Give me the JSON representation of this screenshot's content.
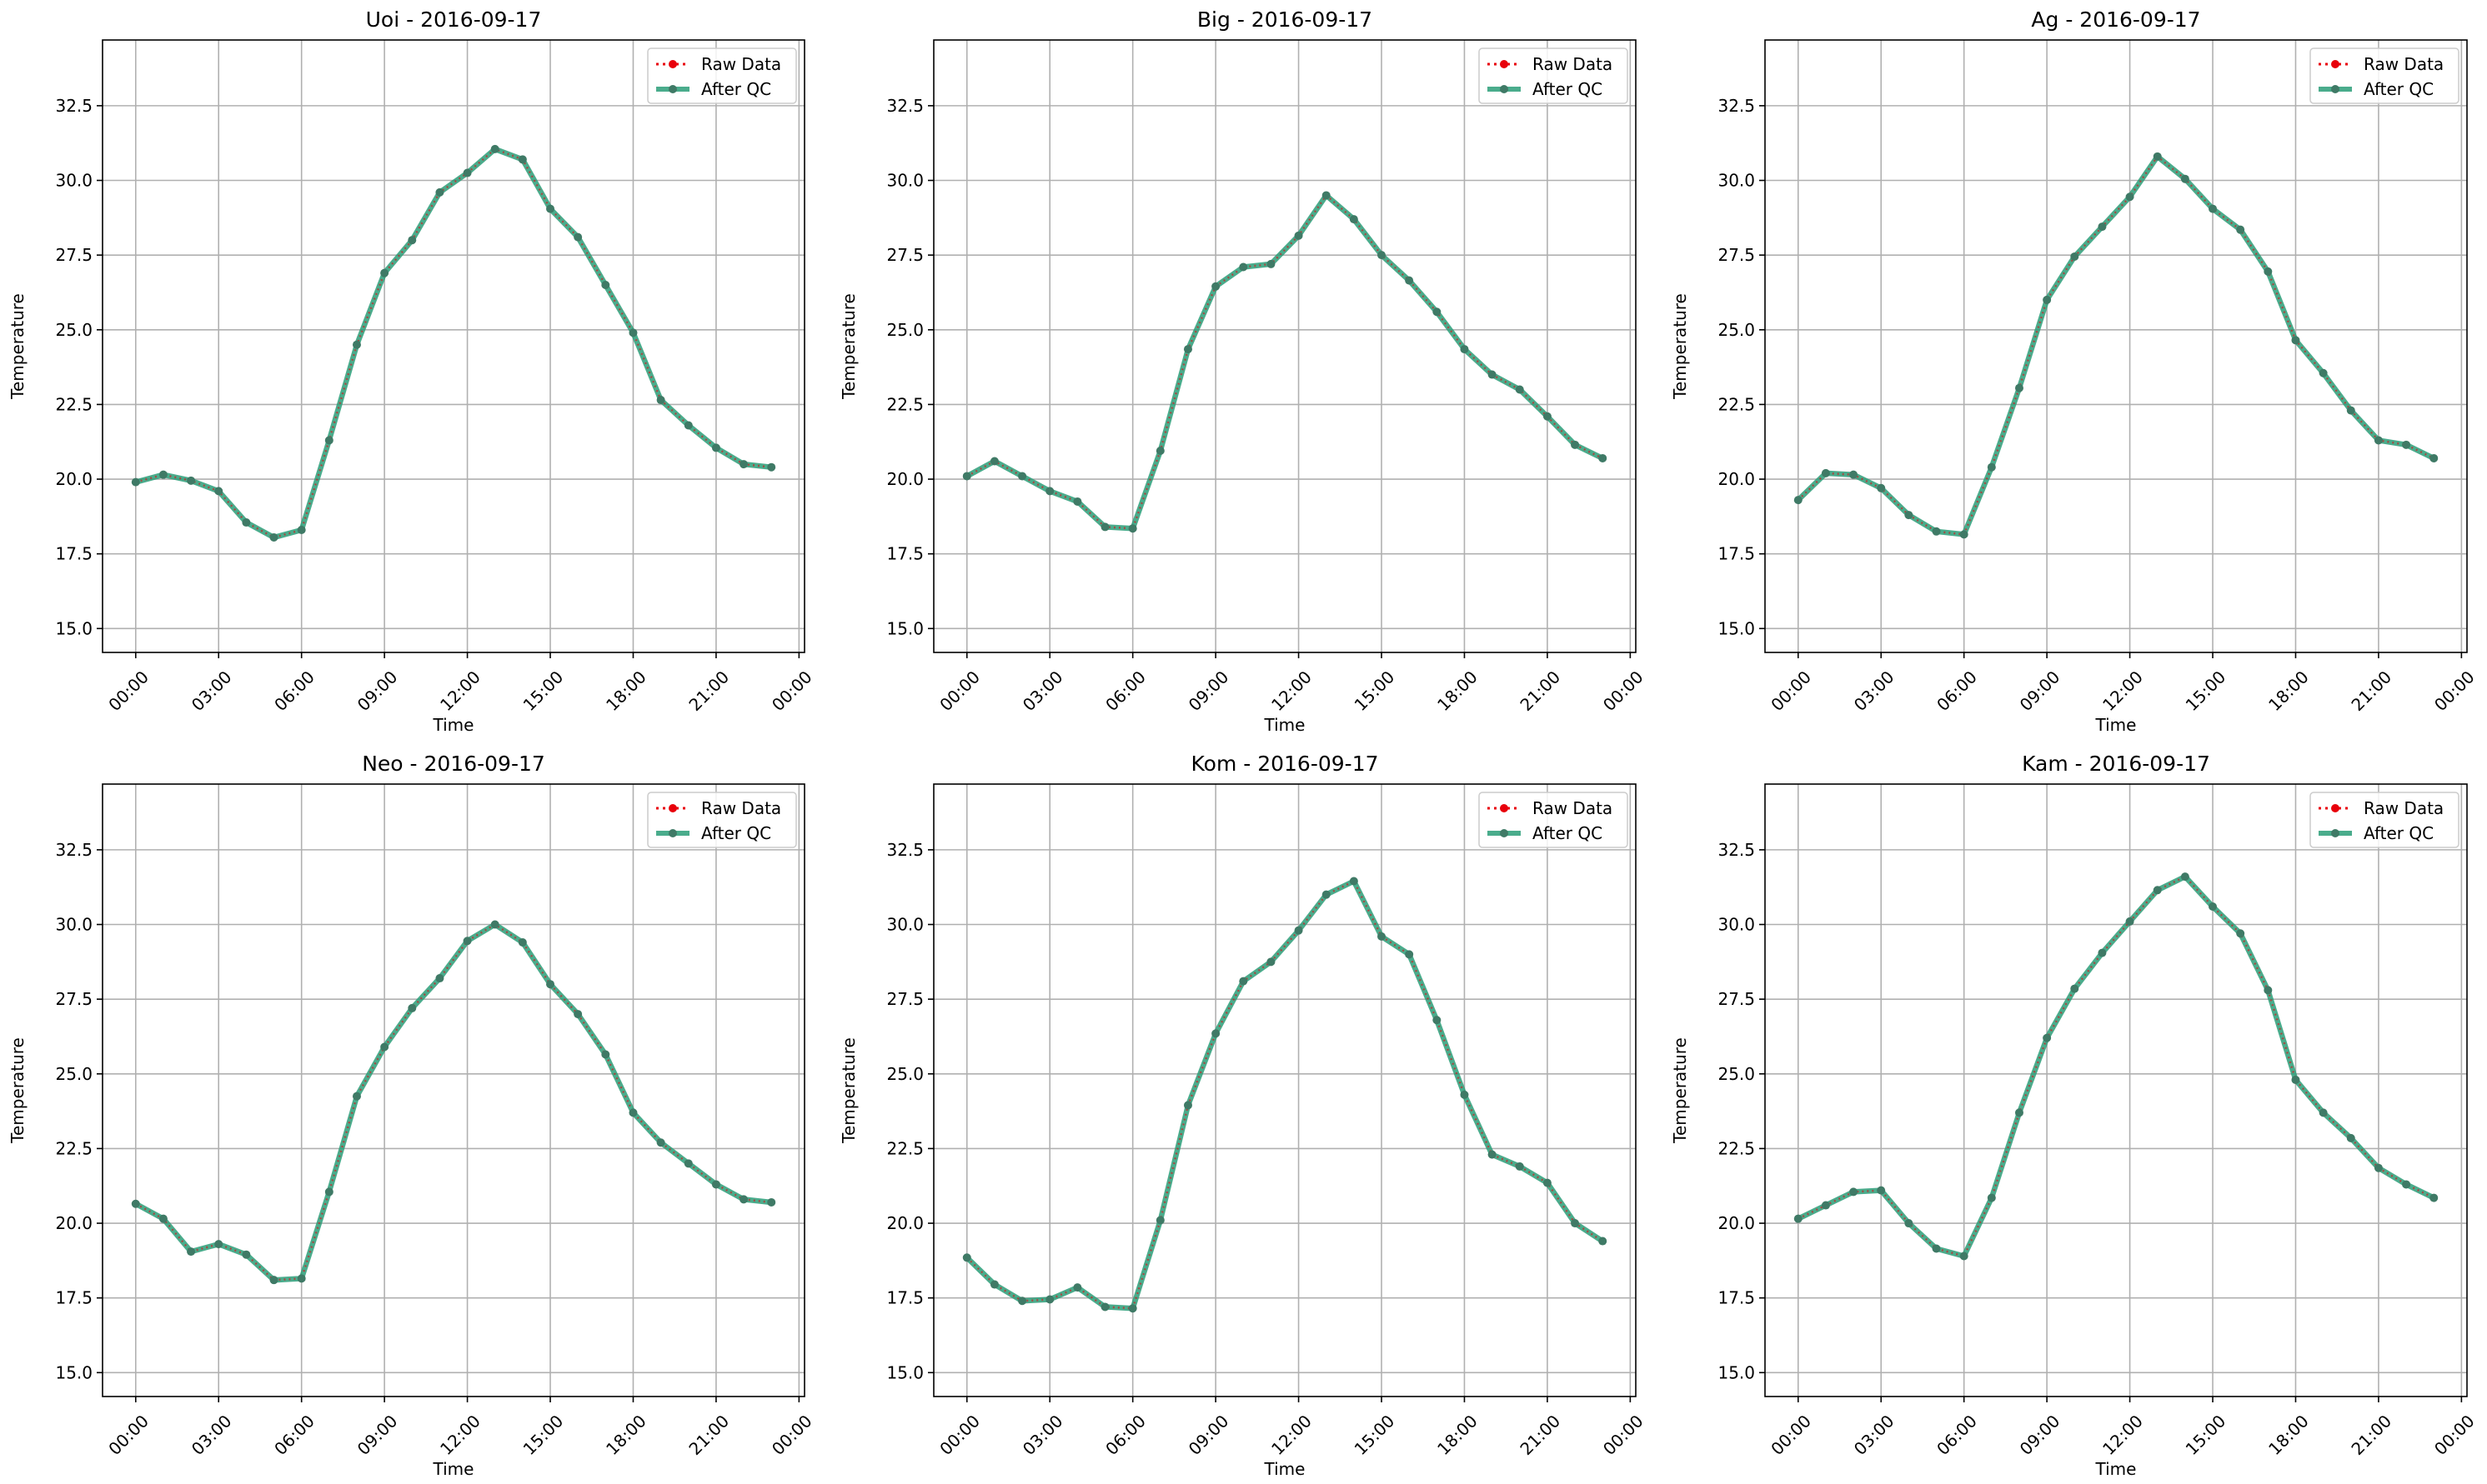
{
  "chart_data": [
    {
      "type": "line",
      "title": "Uoi - 2016-09-17",
      "xlabel": "Time",
      "ylabel": "Temperature",
      "xticks": [
        "00:00",
        "03:00",
        "06:00",
        "09:00",
        "12:00",
        "15:00",
        "18:00",
        "21:00",
        "00:00"
      ],
      "yticks": [
        "15.0",
        "17.5",
        "20.0",
        "22.5",
        "25.0",
        "27.5",
        "30.0",
        "32.5"
      ],
      "xlim": [
        -1.2,
        24.2
      ],
      "ylim": [
        14.2,
        34.7
      ],
      "grid": true,
      "legend": "top-right",
      "series": [
        {
          "name": "Raw Data",
          "color": "#e8000b",
          "style": "dotted",
          "values": [
            19.9,
            20.15,
            19.95,
            19.6,
            18.55,
            18.05,
            18.3,
            21.3,
            24.5,
            26.9,
            28.0,
            29.6,
            30.25,
            31.05,
            30.7,
            29.05,
            28.1,
            26.5,
            24.9,
            22.65,
            21.8,
            21.05,
            20.5,
            20.4
          ]
        },
        {
          "name": "After QC",
          "color": "#2a9d78",
          "style": "solid",
          "values": [
            19.9,
            20.15,
            19.95,
            19.6,
            18.55,
            18.05,
            18.3,
            21.3,
            24.5,
            26.9,
            28.0,
            29.6,
            30.25,
            31.05,
            30.7,
            29.05,
            28.1,
            26.5,
            24.9,
            22.65,
            21.8,
            21.05,
            20.5,
            20.4
          ]
        }
      ]
    },
    {
      "type": "line",
      "title": "Big - 2016-09-17",
      "xlabel": "Time",
      "ylabel": "Temperature",
      "xticks": [
        "00:00",
        "03:00",
        "06:00",
        "09:00",
        "12:00",
        "15:00",
        "18:00",
        "21:00",
        "00:00"
      ],
      "yticks": [
        "15.0",
        "17.5",
        "20.0",
        "22.5",
        "25.0",
        "27.5",
        "30.0",
        "32.5"
      ],
      "xlim": [
        -1.2,
        24.2
      ],
      "ylim": [
        14.2,
        34.7
      ],
      "grid": true,
      "legend": "top-right",
      "series": [
        {
          "name": "Raw Data",
          "color": "#e8000b",
          "style": "dotted",
          "values": [
            20.1,
            20.6,
            20.1,
            19.6,
            19.25,
            18.4,
            18.35,
            20.95,
            24.35,
            26.45,
            27.1,
            27.2,
            28.15,
            29.5,
            28.7,
            27.5,
            26.65,
            25.6,
            24.35,
            23.5,
            23.0,
            22.1,
            21.15,
            20.7
          ]
        },
        {
          "name": "After QC",
          "color": "#2a9d78",
          "style": "solid",
          "values": [
            20.1,
            20.6,
            20.1,
            19.6,
            19.25,
            18.4,
            18.35,
            20.95,
            24.35,
            26.45,
            27.1,
            27.2,
            28.15,
            29.5,
            28.7,
            27.5,
            26.65,
            25.6,
            24.35,
            23.5,
            23.0,
            22.1,
            21.15,
            20.7
          ]
        }
      ]
    },
    {
      "type": "line",
      "title": "Ag - 2016-09-17",
      "xlabel": "Time",
      "ylabel": "Temperature",
      "xticks": [
        "00:00",
        "03:00",
        "06:00",
        "09:00",
        "12:00",
        "15:00",
        "18:00",
        "21:00",
        "00:00"
      ],
      "yticks": [
        "15.0",
        "17.5",
        "20.0",
        "22.5",
        "25.0",
        "27.5",
        "30.0",
        "32.5"
      ],
      "xlim": [
        -1.2,
        24.2
      ],
      "ylim": [
        14.2,
        34.7
      ],
      "grid": true,
      "legend": "top-right",
      "series": [
        {
          "name": "Raw Data",
          "color": "#e8000b",
          "style": "dotted",
          "values": [
            19.3,
            20.2,
            20.15,
            19.7,
            18.8,
            18.25,
            18.15,
            20.4,
            23.05,
            26.0,
            27.45,
            28.45,
            29.45,
            30.8,
            30.05,
            29.05,
            28.35,
            26.95,
            24.65,
            23.55,
            22.3,
            21.3,
            21.15,
            20.7
          ]
        },
        {
          "name": "After QC",
          "color": "#2a9d78",
          "style": "solid",
          "values": [
            19.3,
            20.2,
            20.15,
            19.7,
            18.8,
            18.25,
            18.15,
            20.4,
            23.05,
            26.0,
            27.45,
            28.45,
            29.45,
            30.8,
            30.05,
            29.05,
            28.35,
            26.95,
            24.65,
            23.55,
            22.3,
            21.3,
            21.15,
            20.7
          ]
        }
      ]
    },
    {
      "type": "line",
      "title": "Neo - 2016-09-17",
      "xlabel": "Time",
      "ylabel": "Temperature",
      "xticks": [
        "00:00",
        "03:00",
        "06:00",
        "09:00",
        "12:00",
        "15:00",
        "18:00",
        "21:00",
        "00:00"
      ],
      "yticks": [
        "15.0",
        "17.5",
        "20.0",
        "22.5",
        "25.0",
        "27.5",
        "30.0",
        "32.5"
      ],
      "xlim": [
        -1.2,
        24.2
      ],
      "ylim": [
        14.2,
        34.7
      ],
      "grid": true,
      "legend": "top-right",
      "series": [
        {
          "name": "Raw Data",
          "color": "#e8000b",
          "style": "dotted",
          "values": [
            20.65,
            20.15,
            19.05,
            19.3,
            18.95,
            18.1,
            18.15,
            21.05,
            24.25,
            25.9,
            27.2,
            28.2,
            29.45,
            30.0,
            29.4,
            28.0,
            27.0,
            25.65,
            23.7,
            22.7,
            22.0,
            21.3,
            20.8,
            20.7
          ]
        },
        {
          "name": "After QC",
          "color": "#2a9d78",
          "style": "solid",
          "values": [
            20.65,
            20.15,
            19.05,
            19.3,
            18.95,
            18.1,
            18.15,
            21.05,
            24.25,
            25.9,
            27.2,
            28.2,
            29.45,
            30.0,
            29.4,
            28.0,
            27.0,
            25.65,
            23.7,
            22.7,
            22.0,
            21.3,
            20.8,
            20.7
          ]
        }
      ]
    },
    {
      "type": "line",
      "title": "Kom - 2016-09-17",
      "xlabel": "Time",
      "ylabel": "Temperature",
      "xticks": [
        "00:00",
        "03:00",
        "06:00",
        "09:00",
        "12:00",
        "15:00",
        "18:00",
        "21:00",
        "00:00"
      ],
      "yticks": [
        "15.0",
        "17.5",
        "20.0",
        "22.5",
        "25.0",
        "27.5",
        "30.0",
        "32.5"
      ],
      "xlim": [
        -1.2,
        24.2
      ],
      "ylim": [
        14.2,
        34.7
      ],
      "grid": true,
      "legend": "top-right",
      "series": [
        {
          "name": "Raw Data",
          "color": "#e8000b",
          "style": "dotted",
          "values": [
            18.85,
            17.95,
            17.4,
            17.45,
            17.85,
            17.2,
            17.15,
            20.1,
            23.95,
            26.35,
            28.1,
            28.75,
            29.8,
            31.0,
            31.45,
            29.6,
            29.0,
            26.8,
            24.3,
            22.3,
            21.9,
            21.35,
            20.0,
            19.4
          ]
        },
        {
          "name": "After QC",
          "color": "#2a9d78",
          "style": "solid",
          "values": [
            18.85,
            17.95,
            17.4,
            17.45,
            17.85,
            17.2,
            17.15,
            20.1,
            23.95,
            26.35,
            28.1,
            28.75,
            29.8,
            31.0,
            31.45,
            29.6,
            29.0,
            26.8,
            24.3,
            22.3,
            21.9,
            21.35,
            20.0,
            19.4
          ]
        }
      ]
    },
    {
      "type": "line",
      "title": "Kam - 2016-09-17",
      "xlabel": "Time",
      "ylabel": "Temperature",
      "xticks": [
        "00:00",
        "03:00",
        "06:00",
        "09:00",
        "12:00",
        "15:00",
        "18:00",
        "21:00",
        "00:00"
      ],
      "yticks": [
        "15.0",
        "17.5",
        "20.0",
        "22.5",
        "25.0",
        "27.5",
        "30.0",
        "32.5"
      ],
      "xlim": [
        -1.2,
        24.2
      ],
      "ylim": [
        14.2,
        34.7
      ],
      "grid": true,
      "legend": "top-right",
      "series": [
        {
          "name": "Raw Data",
          "color": "#e8000b",
          "style": "dotted",
          "values": [
            20.15,
            20.6,
            21.05,
            21.1,
            20.0,
            19.15,
            18.9,
            20.85,
            23.7,
            26.2,
            27.85,
            29.05,
            30.1,
            31.15,
            31.6,
            30.6,
            29.7,
            27.8,
            24.8,
            23.7,
            22.85,
            21.85,
            21.3,
            20.85
          ]
        },
        {
          "name": "After QC",
          "color": "#2a9d78",
          "style": "solid",
          "values": [
            20.15,
            20.6,
            21.05,
            21.1,
            20.0,
            19.15,
            18.9,
            20.85,
            23.7,
            26.2,
            27.85,
            29.05,
            30.1,
            31.15,
            31.6,
            30.6,
            29.7,
            27.8,
            24.8,
            23.7,
            22.85,
            21.85,
            21.3,
            20.85
          ]
        }
      ]
    }
  ]
}
